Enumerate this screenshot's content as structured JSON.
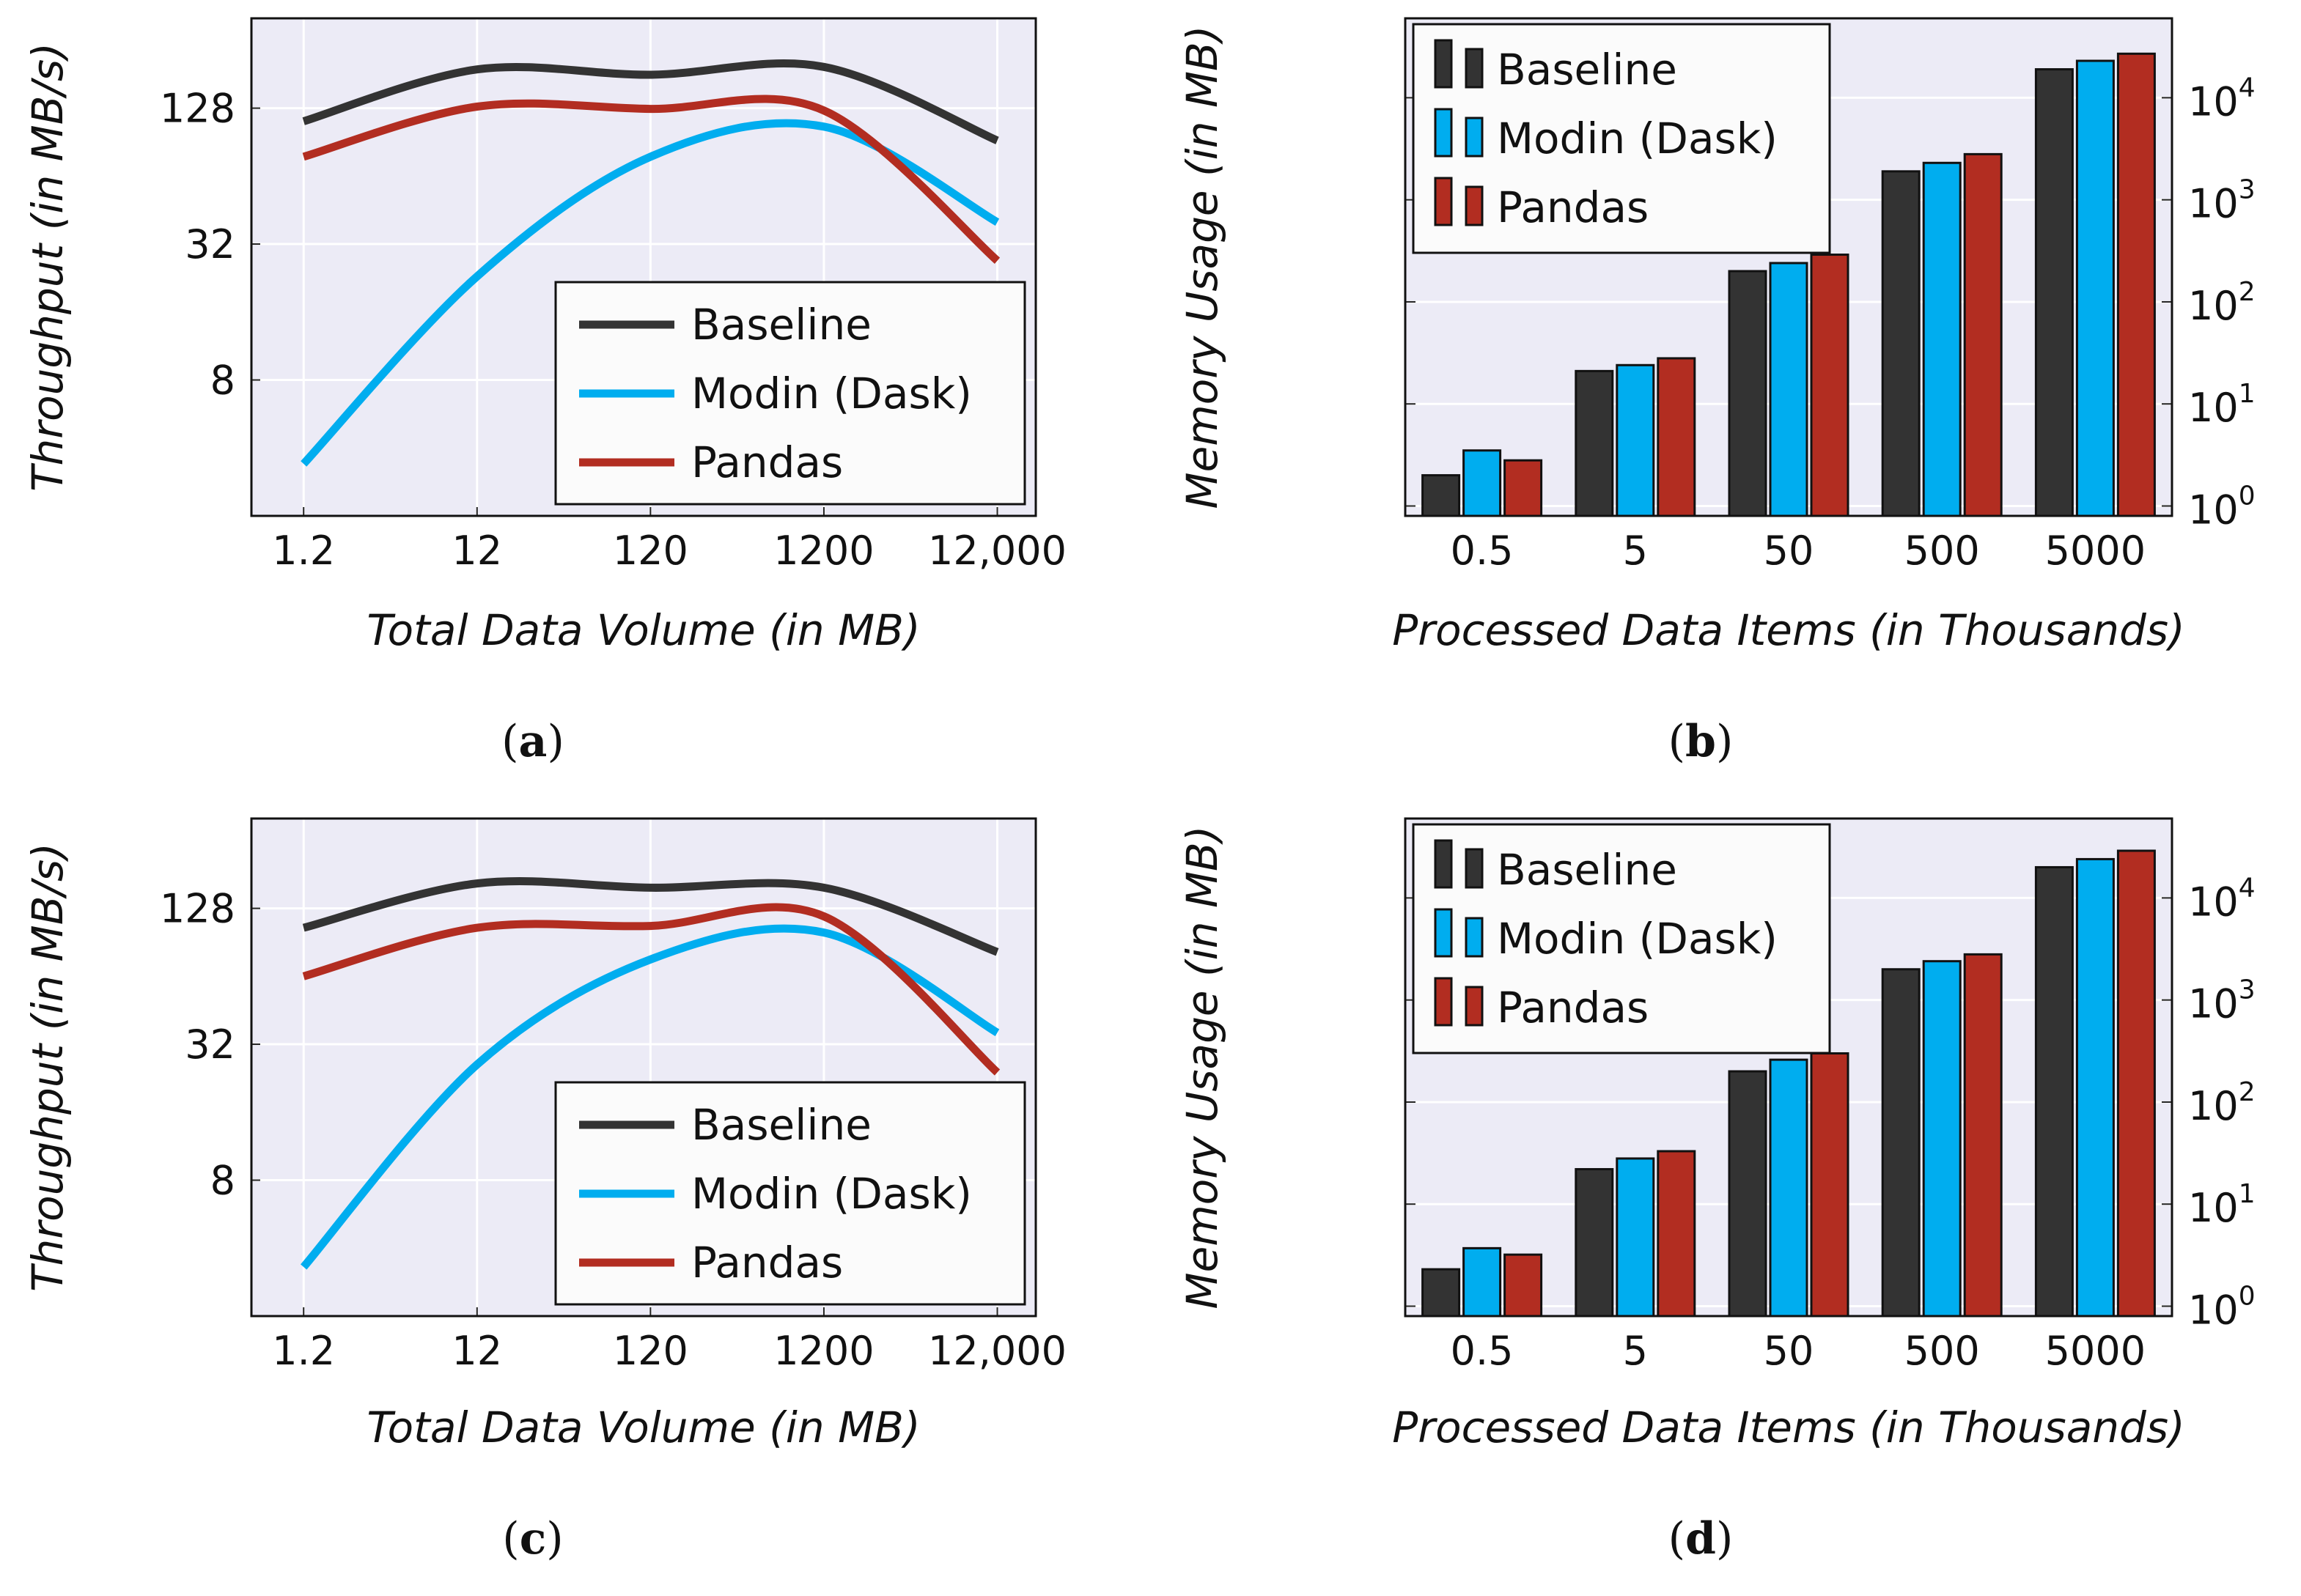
{
  "colors": {
    "baseline": "#333333",
    "modin": "#00ADEF",
    "pandas": "#B22D21",
    "plot_background": "#ECEBF6",
    "grid": "#FFFFFF"
  },
  "legend_labels": [
    "Baseline",
    "Modin (Dask)",
    "Pandas"
  ],
  "chart_data": [
    {
      "panel": "a",
      "type": "line",
      "caption": {
        "open": "(",
        "letter": "a",
        "close": ")"
      },
      "xlabel": "Total Data Volume (in MB)",
      "ylabel": "Throughput (in MB/s)",
      "x_scale": "log10",
      "y_scale": "log2",
      "x": [
        1.2,
        12,
        120,
        1200,
        12000
      ],
      "x_ticks": [
        "1.2",
        "12",
        "120",
        "1200",
        "12,000"
      ],
      "xlim": [
        0.6,
        20000
      ],
      "y_ticks": [
        {
          "value": 8,
          "label": "8"
        },
        {
          "value": 32,
          "label": "32"
        },
        {
          "value": 128,
          "label": "128"
        }
      ],
      "ylim": [
        2,
        320
      ],
      "grid": true,
      "legend_position": "lower-right",
      "series": [
        {
          "name": "Baseline",
          "values": [
            112,
            190,
            180,
            195,
            92
          ]
        },
        {
          "name": "Modin (Dask)",
          "values": [
            3.4,
            23,
            78,
            106,
            40
          ]
        },
        {
          "name": "Pandas",
          "values": [
            78,
            130,
            127,
            125,
            27
          ]
        }
      ]
    },
    {
      "panel": "b",
      "type": "bar",
      "caption": {
        "open": "(",
        "letter": "b",
        "close": ")"
      },
      "xlabel": "Processed Data Items (in Thousands)",
      "ylabel": "Memory Usage (in MB)",
      "y_scale": "log10",
      "y_axis_side": "right",
      "categories": [
        "0.5",
        "5",
        "50",
        "500",
        "5000"
      ],
      "y_ticks": [
        {
          "value": 1,
          "label": "10",
          "exp": "0"
        },
        {
          "value": 10,
          "label": "10",
          "exp": "1"
        },
        {
          "value": 100,
          "label": "10",
          "exp": "2"
        },
        {
          "value": 1000,
          "label": "10",
          "exp": "3"
        },
        {
          "value": 10000,
          "label": "10",
          "exp": "4"
        }
      ],
      "ylim": [
        0.8,
        60000
      ],
      "grid": true,
      "legend_position": "top-left",
      "series": [
        {
          "name": "Baseline",
          "values": [
            2,
            21,
            200,
            1900,
            19000
          ]
        },
        {
          "name": "Modin (Dask)",
          "values": [
            3.5,
            24,
            240,
            2300,
            23000
          ]
        },
        {
          "name": "Pandas",
          "values": [
            2.8,
            28,
            290,
            2800,
            27000
          ]
        }
      ]
    },
    {
      "panel": "c",
      "type": "line",
      "caption": {
        "open": "(",
        "letter": "c",
        "close": ")"
      },
      "xlabel": "Total Data Volume (in MB)",
      "ylabel": "Throughput (in MB/s)",
      "x_scale": "log10",
      "y_scale": "log2",
      "x": [
        1.2,
        12,
        120,
        1200,
        12000
      ],
      "x_ticks": [
        "1.2",
        "12",
        "120",
        "1200",
        "12,000"
      ],
      "xlim": [
        0.6,
        20000
      ],
      "y_ticks": [
        {
          "value": 8,
          "label": "8"
        },
        {
          "value": 32,
          "label": "32"
        },
        {
          "value": 128,
          "label": "128"
        }
      ],
      "ylim": [
        2,
        320
      ],
      "grid": true,
      "legend_position": "lower-right",
      "series": [
        {
          "name": "Baseline",
          "values": [
            105,
            165,
            158,
            158,
            82
          ]
        },
        {
          "name": "Modin (Dask)",
          "values": [
            3.3,
            26,
            76,
            100,
            36
          ]
        },
        {
          "name": "Pandas",
          "values": [
            64,
            105,
            107,
            118,
            24
          ]
        }
      ]
    },
    {
      "panel": "d",
      "type": "bar",
      "caption": {
        "open": "(",
        "letter": "d",
        "close": ")"
      },
      "xlabel": "Processed Data Items (in Thousands)",
      "ylabel": "Memory Usage (in MB)",
      "y_scale": "log10",
      "y_axis_side": "right",
      "categories": [
        "0.5",
        "5",
        "50",
        "500",
        "5000"
      ],
      "y_ticks": [
        {
          "value": 1,
          "label": "10",
          "exp": "0"
        },
        {
          "value": 10,
          "label": "10",
          "exp": "1"
        },
        {
          "value": 100,
          "label": "10",
          "exp": "2"
        },
        {
          "value": 1000,
          "label": "10",
          "exp": "3"
        },
        {
          "value": 10000,
          "label": "10",
          "exp": "4"
        }
      ],
      "ylim": [
        0.8,
        60000
      ],
      "grid": true,
      "legend_position": "top-left",
      "series": [
        {
          "name": "Baseline",
          "values": [
            2.3,
            22,
            200,
            2000,
            20000
          ]
        },
        {
          "name": "Modin (Dask)",
          "values": [
            3.7,
            28,
            260,
            2400,
            24000
          ]
        },
        {
          "name": "Pandas",
          "values": [
            3.2,
            33,
            300,
            2800,
            29000
          ]
        }
      ]
    }
  ]
}
